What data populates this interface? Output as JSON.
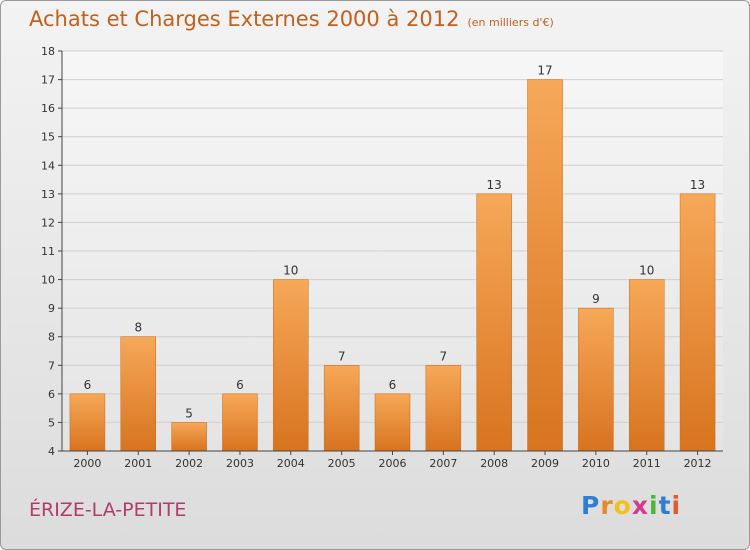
{
  "header": {
    "title": "Achats et Charges Externes 2000 à 2012",
    "subtitle": "(en milliers d'€)"
  },
  "footer": {
    "commune": "ÉRIZE-LA-PETITE",
    "logo_letters": [
      "P",
      "r",
      "o",
      "x",
      "i",
      "t",
      "i"
    ],
    "logo_colors": [
      "#2f7fd1",
      "#e98a24",
      "#f1c21c",
      "#d23c8a",
      "#4fb43a",
      "#2f7fd1",
      "#e45a2a"
    ]
  },
  "colors": {
    "bar_top": "#f6a858",
    "bar_bottom": "#d8731f",
    "text": "#c0611e",
    "axis": "#444444",
    "grid": "#d0d0d0"
  },
  "chart_data": {
    "type": "bar",
    "categories": [
      "2000",
      "2001",
      "2002",
      "2003",
      "2004",
      "2005",
      "2006",
      "2007",
      "2008",
      "2009",
      "2010",
      "2011",
      "2012"
    ],
    "values": [
      6,
      8,
      5,
      6,
      10,
      7,
      6,
      7,
      13,
      17,
      9,
      10,
      13
    ],
    "title": "Achats et Charges Externes 2000 à 2012",
    "subtitle": "(en milliers d'€)",
    "xlabel": "",
    "ylabel": "",
    "ylim": [
      4,
      18
    ],
    "yticks": [
      4,
      5,
      6,
      7,
      8,
      9,
      10,
      11,
      12,
      13,
      14,
      15,
      16,
      17,
      18
    ],
    "data_labels": [
      "6",
      "8",
      "5",
      "6",
      "10",
      "7",
      "6",
      "7",
      "13",
      "17",
      "9",
      "10",
      "13"
    ],
    "grid": true,
    "legend": "none"
  }
}
